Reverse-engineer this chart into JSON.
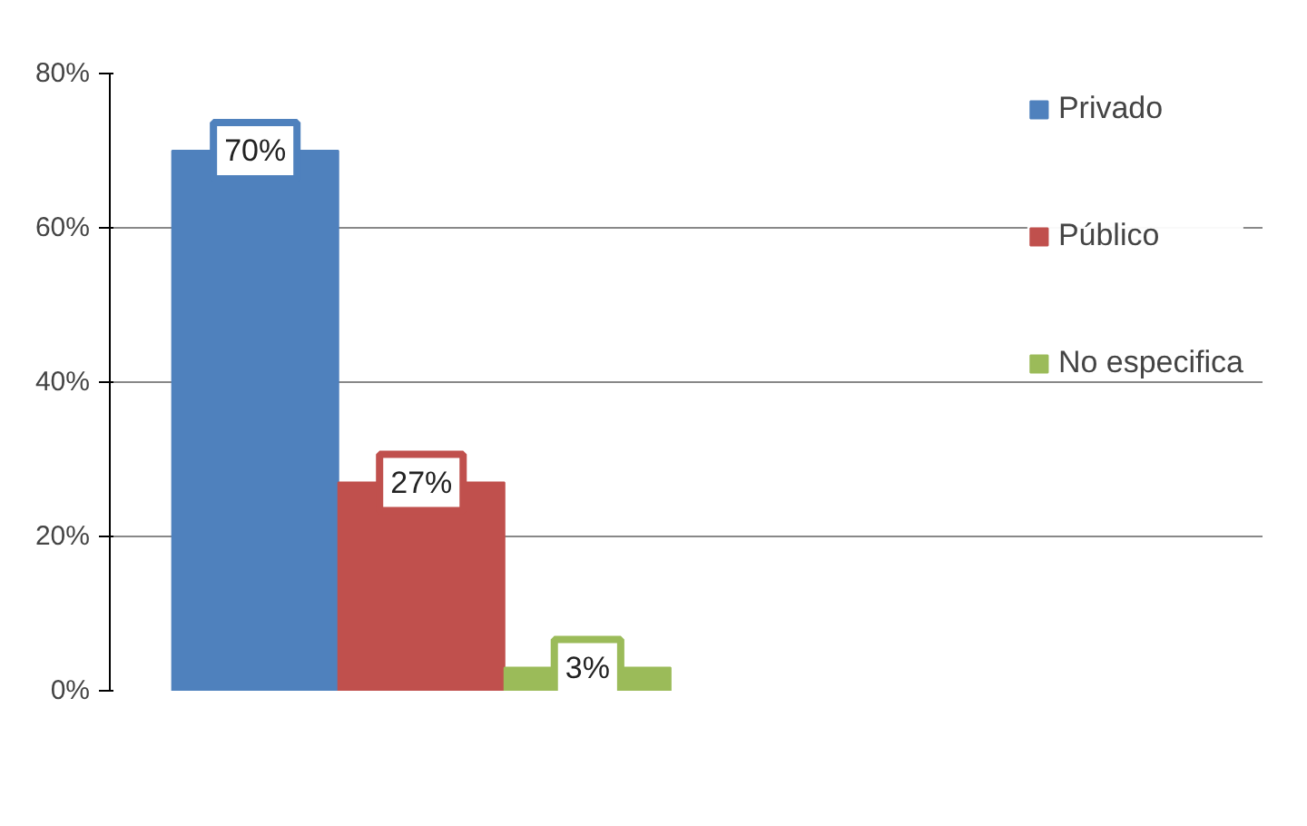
{
  "chart_data": {
    "type": "bar",
    "categories": [
      null
    ],
    "series": [
      {
        "name": "Privado",
        "color": "#4f81bd",
        "values": [
          70
        ],
        "value_labels": [
          "70%"
        ]
      },
      {
        "name": "Público",
        "color": "#c0504d",
        "values": [
          27
        ],
        "value_labels": [
          "27%"
        ]
      },
      {
        "name": "No especifica",
        "color": "#9bbb59",
        "values": [
          3
        ],
        "value_labels": [
          "3%"
        ]
      }
    ],
    "ylim": [
      0,
      80
    ],
    "yticks": [
      {
        "value": 0,
        "label": "0%"
      },
      {
        "value": 20,
        "label": "20%"
      },
      {
        "value": 40,
        "label": "40%"
      },
      {
        "value": 60,
        "label": "60%"
      },
      {
        "value": 80,
        "label": "80%"
      }
    ],
    "grid": "y",
    "legend": "right"
  }
}
